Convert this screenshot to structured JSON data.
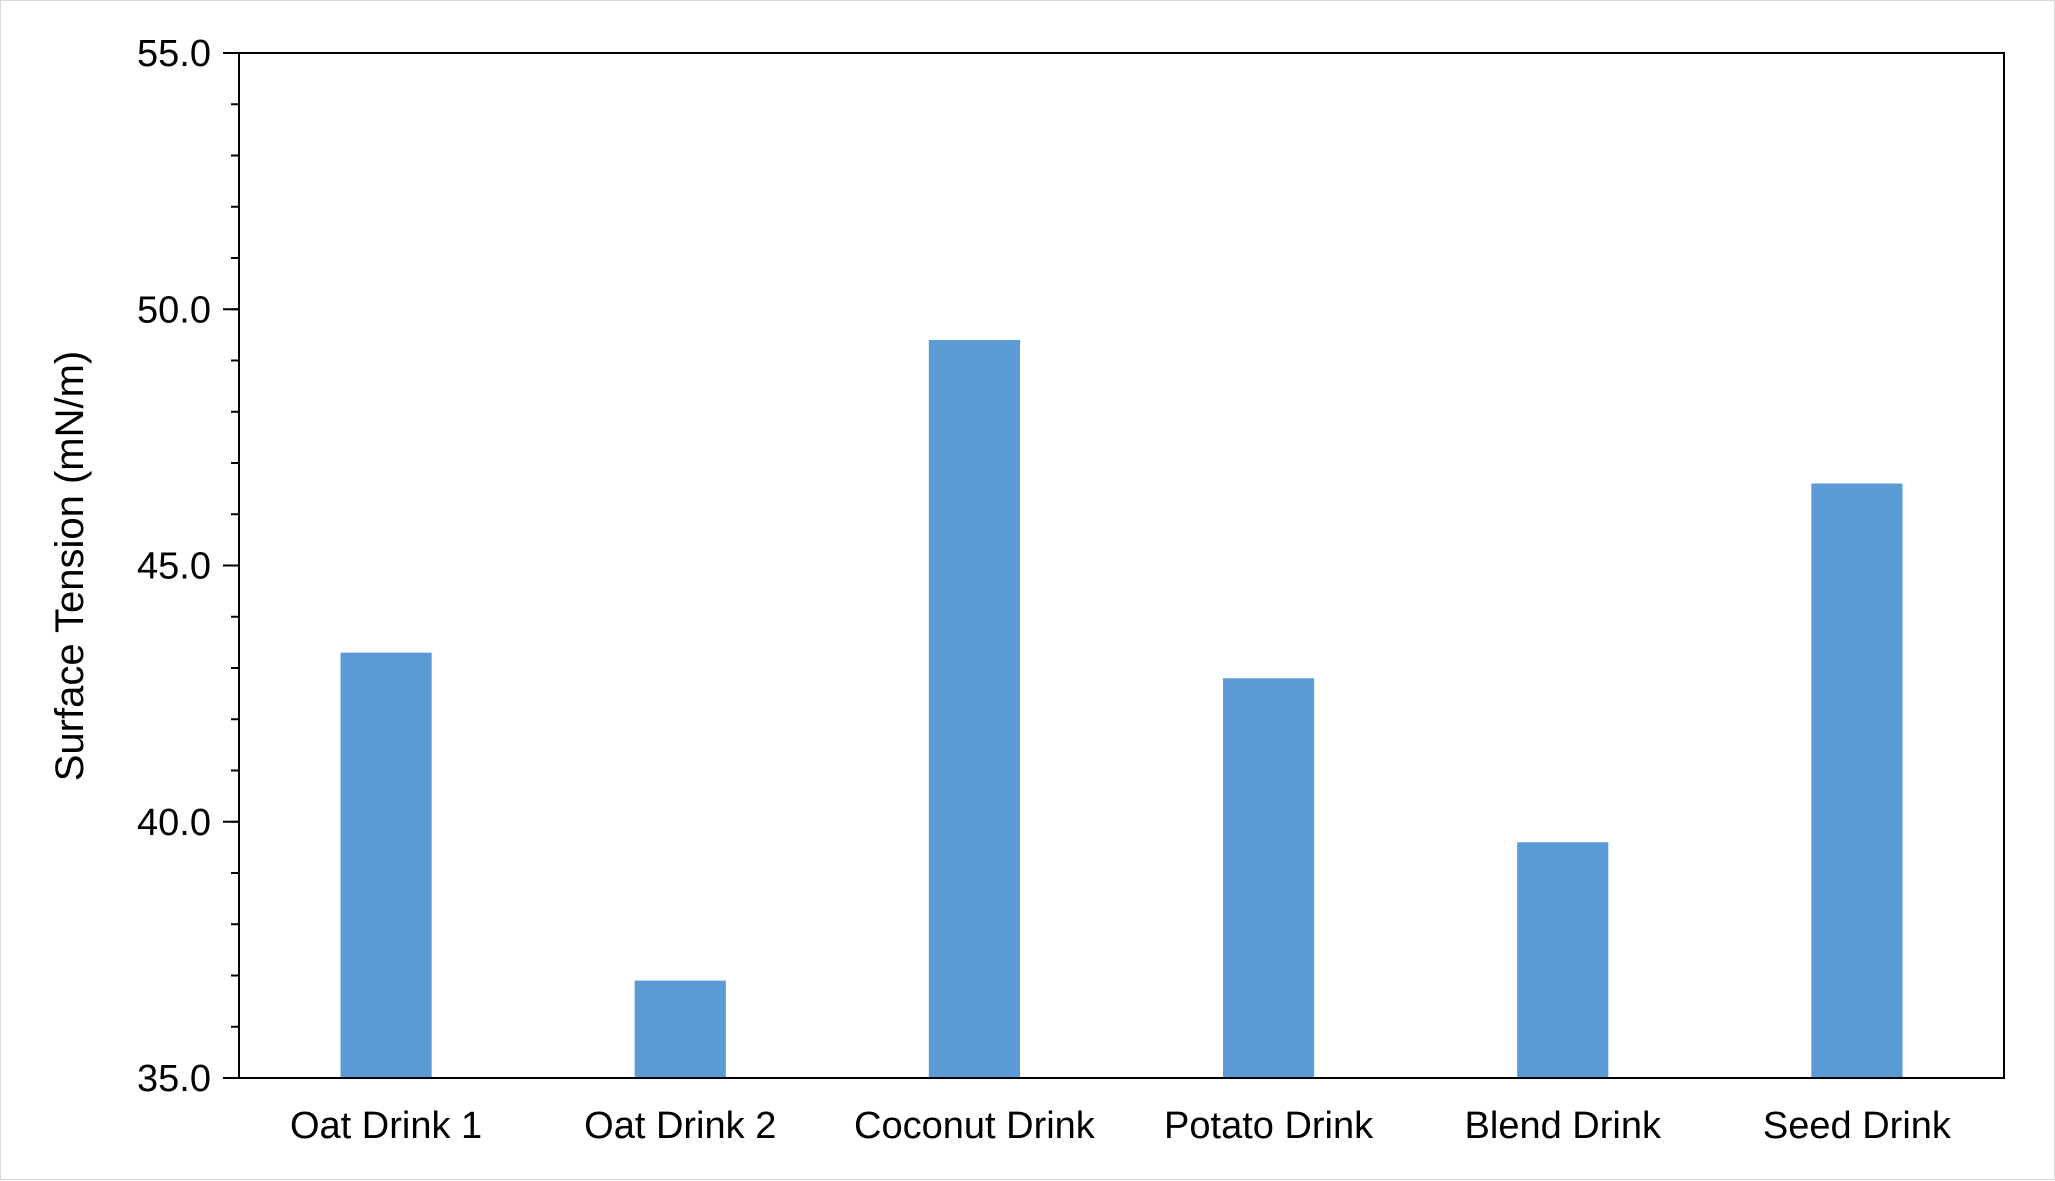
{
  "colors": {
    "bar": "#5b9bd5",
    "axis": "#000000",
    "border": "#d9d9d9",
    "background": "#ffffff"
  },
  "chart_data": {
    "type": "bar",
    "title": "",
    "xlabel": "",
    "ylabel": "Surface Tension (mN/m)",
    "categories": [
      "Oat Drink 1",
      "Oat Drink 2",
      "Coconut Drink",
      "Potato Drink",
      "Blend Drink",
      "Seed Drink"
    ],
    "series": [
      {
        "values": [
          43.3,
          36.9,
          49.4,
          42.8,
          39.6,
          46.6
        ]
      }
    ],
    "ylim": [
      35.0,
      55.0
    ],
    "yticks": [
      "35.0",
      "40.0",
      "45.0",
      "50.0",
      "55.0"
    ],
    "y_minor_step": 1.0,
    "grid": false,
    "legend": "none"
  }
}
